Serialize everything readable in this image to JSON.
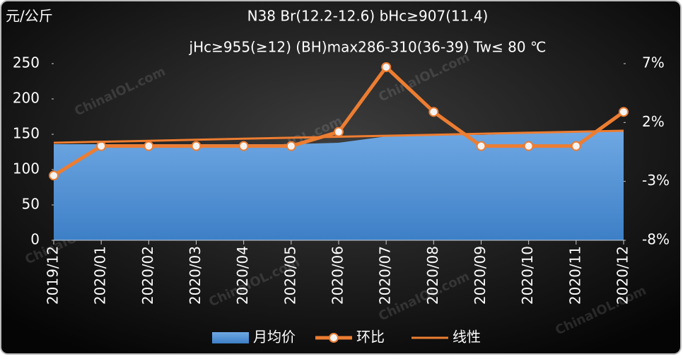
{
  "chart_data": {
    "type": "combo",
    "title": "N38 Br(12.2-12.6) bHc≥907(11.4)",
    "subtitle": "jHc≥955(≥12) (BH)max286-310(36-39) Tw≤ 80 ℃",
    "y_label": "元/公斤",
    "watermark": "ChinaIOL.com",
    "categories": [
      "2019/12",
      "2020/01",
      "2020/02",
      "2020/03",
      "2020/04",
      "2020/05",
      "2020/06",
      "2020/07",
      "2020/08",
      "2020/09",
      "2020/10",
      "2020/11",
      "2020/12"
    ],
    "series": [
      {
        "name": "月均价",
        "type": "area",
        "color": "#5b9bd5",
        "values": [
          136,
          136,
          136,
          136,
          136,
          136,
          138,
          147,
          150,
          149,
          152,
          153,
          155
        ]
      },
      {
        "name": "环比",
        "type": "line",
        "axis": "y2",
        "color": "#ed7d31",
        "values": [
          -2.5,
          0,
          0,
          0,
          0,
          0,
          1.2,
          6.7,
          2.9,
          0,
          0,
          0,
          2.9
        ]
      },
      {
        "name": "线性",
        "type": "trend",
        "color": "#ed7d31",
        "values": [
          138,
          139.4,
          140.8,
          142.3,
          143.7,
          145.1,
          146.5,
          147.9,
          149.3,
          150.8,
          152.2,
          153.6,
          155
        ]
      }
    ],
    "ylim": [
      0,
      250
    ],
    "yticks": [
      0,
      50,
      100,
      150,
      200,
      250
    ],
    "y2lim": [
      -8,
      7
    ],
    "y2ticks": [
      {
        "value": -8,
        "label": "-8%"
      },
      {
        "value": -3,
        "label": "-3%"
      },
      {
        "value": 2,
        "label": "2%"
      },
      {
        "value": 7,
        "label": "7%"
      }
    ],
    "legend": "bottom"
  }
}
